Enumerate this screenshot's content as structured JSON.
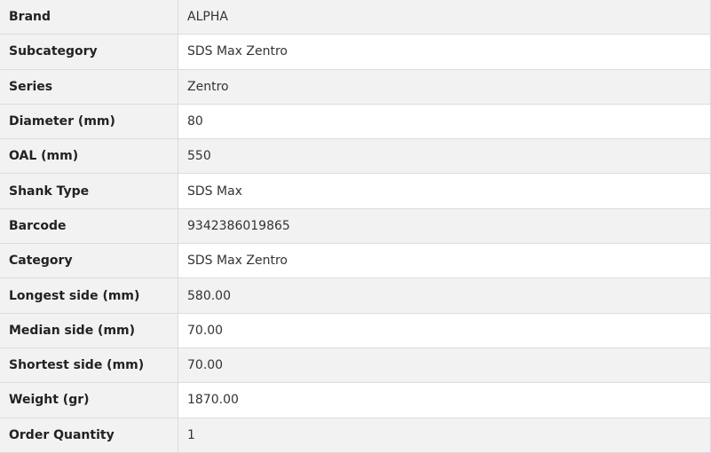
{
  "rows": [
    {
      "label": "Brand",
      "value": "ALPHA"
    },
    {
      "label": "Subcategory",
      "value": "SDS Max Zentro"
    },
    {
      "label": "Series",
      "value": "Zentro"
    },
    {
      "label": "Diameter (mm)",
      "value": "80"
    },
    {
      "label": "OAL (mm)",
      "value": "550"
    },
    {
      "label": "Shank Type",
      "value": "SDS Max"
    },
    {
      "label": "Barcode",
      "value": "9342386019865"
    },
    {
      "label": "Category",
      "value": "SDS Max Zentro"
    },
    {
      "label": "Longest side (mm)",
      "value": "580.00"
    },
    {
      "label": "Median side (mm)",
      "value": "70.00"
    },
    {
      "label": "Shortest side (mm)",
      "value": "70.00"
    },
    {
      "label": "Weight (gr)",
      "value": "1870.00"
    },
    {
      "label": "Order Quantity",
      "value": "1"
    }
  ]
}
